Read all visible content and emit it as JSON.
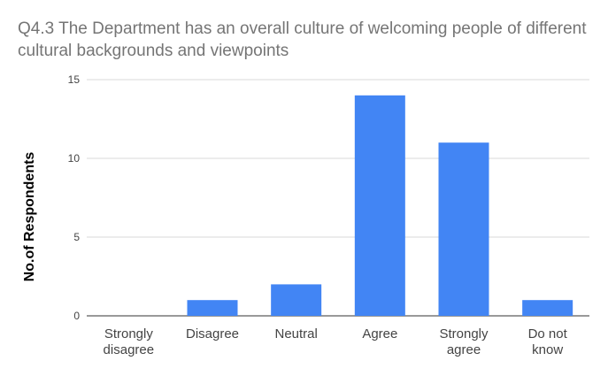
{
  "chart_data": {
    "type": "bar",
    "title": "Q4.3 The Department has an overall culture of welcoming people of different cultural backgrounds and viewpoints",
    "xlabel": "",
    "ylabel": "No.of Respondents",
    "categories": [
      [
        "Strongly",
        "disagree"
      ],
      [
        "Disagree"
      ],
      [
        "Neutral"
      ],
      [
        "Agree"
      ],
      [
        "Strongly",
        "agree"
      ],
      [
        "Do not",
        "know"
      ]
    ],
    "values": [
      0,
      1,
      2,
      14,
      11,
      1
    ],
    "ylim": [
      0,
      15
    ],
    "yticks": [
      0,
      5,
      10,
      15
    ],
    "grid": true,
    "legend": "none",
    "colors": {
      "bar": "#4285f4",
      "grid": "#d9d9d9",
      "title": "#757575"
    }
  }
}
